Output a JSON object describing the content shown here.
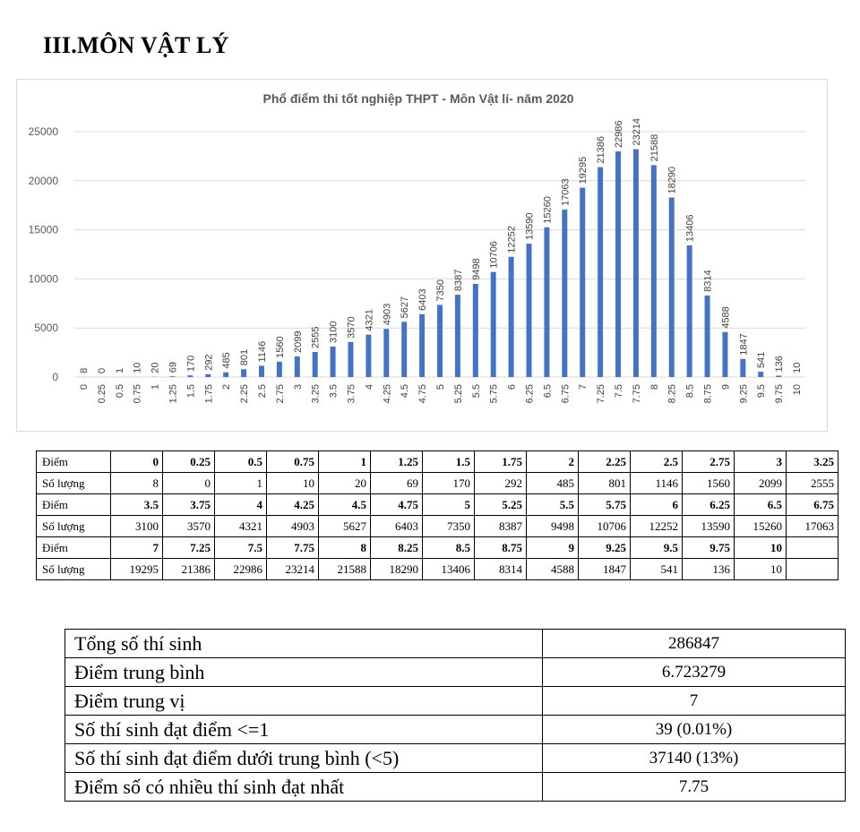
{
  "heading": "III.MÔN VẬT LÝ",
  "chart_data": {
    "type": "bar",
    "title": "Phổ điểm thi tốt nghiệp THPT - Môn Vật lí- năm 2020",
    "xlabel": "",
    "ylabel": "",
    "ylim": [
      0,
      25000
    ],
    "yticks": [
      "0",
      "5000",
      "10000",
      "15000",
      "20000",
      "25000"
    ],
    "grid": true,
    "bar_color": "#4472c4",
    "categories": [
      "0",
      "0.25",
      "0.5",
      "0.75",
      "1",
      "1.25",
      "1.5",
      "1.75",
      "2",
      "2.25",
      "2.5",
      "2.75",
      "3",
      "3.25",
      "3.5",
      "3.75",
      "4",
      "4.25",
      "4.5",
      "4.75",
      "5",
      "5.25",
      "5.5",
      "5.75",
      "6",
      "6.25",
      "6.5",
      "6.75",
      "7",
      "7.25",
      "7.5",
      "7.75",
      "8",
      "8.25",
      "8.5",
      "8.75",
      "9",
      "9.25",
      "9.5",
      "9.75",
      "10"
    ],
    "values": [
      8,
      0,
      1,
      10,
      20,
      69,
      170,
      292,
      485,
      801,
      1146,
      1560,
      2099,
      2555,
      3100,
      3570,
      4321,
      4903,
      5627,
      6403,
      7350,
      8387,
      9498,
      10706,
      12252,
      13590,
      15260,
      17063,
      19295,
      21386,
      22986,
      23214,
      21588,
      18290,
      13406,
      8314,
      4588,
      1847,
      541,
      136,
      10
    ]
  },
  "score_table": {
    "point_label": "Điểm",
    "count_label": "Số lượng",
    "groups": [
      {
        "points": [
          "0",
          "0.25",
          "0.5",
          "0.75",
          "1",
          "1.25",
          "1.5",
          "1.75",
          "2",
          "2.25",
          "2.5",
          "2.75",
          "3",
          "3.25"
        ],
        "counts": [
          "8",
          "0",
          "1",
          "10",
          "20",
          "69",
          "170",
          "292",
          "485",
          "801",
          "1146",
          "1560",
          "2099",
          "2555"
        ]
      },
      {
        "points": [
          "3.5",
          "3.75",
          "4",
          "4.25",
          "4.5",
          "4.75",
          "5",
          "5.25",
          "5.5",
          "5.75",
          "6",
          "6.25",
          "6.5",
          "6.75"
        ],
        "counts": [
          "3100",
          "3570",
          "4321",
          "4903",
          "5627",
          "6403",
          "7350",
          "8387",
          "9498",
          "10706",
          "12252",
          "13590",
          "15260",
          "17063"
        ]
      },
      {
        "points": [
          "7",
          "7.25",
          "7.5",
          "7.75",
          "8",
          "8.25",
          "8.5",
          "8.75",
          "9",
          "9.25",
          "9.5",
          "9.75",
          "10",
          ""
        ],
        "counts": [
          "19295",
          "21386",
          "22986",
          "23214",
          "21588",
          "18290",
          "13406",
          "8314",
          "4588",
          "1847",
          "541",
          "136",
          "10",
          ""
        ]
      }
    ]
  },
  "stats": [
    {
      "label": "Tổng số thí sinh",
      "value": "286847"
    },
    {
      "label": "Điểm trung bình",
      "value": "6.723279"
    },
    {
      "label": "Điểm trung vị",
      "value": "7"
    },
    {
      "label": "Số thí sinh đạt điểm <=1",
      "value": "39 (0.01%)"
    },
    {
      "label": "Số thí sinh đạt điểm dưới trung bình (<5)",
      "value": "37140 (13%)"
    },
    {
      "label": "Điểm số có nhiều thí sinh đạt nhất",
      "value": "7.75"
    }
  ]
}
